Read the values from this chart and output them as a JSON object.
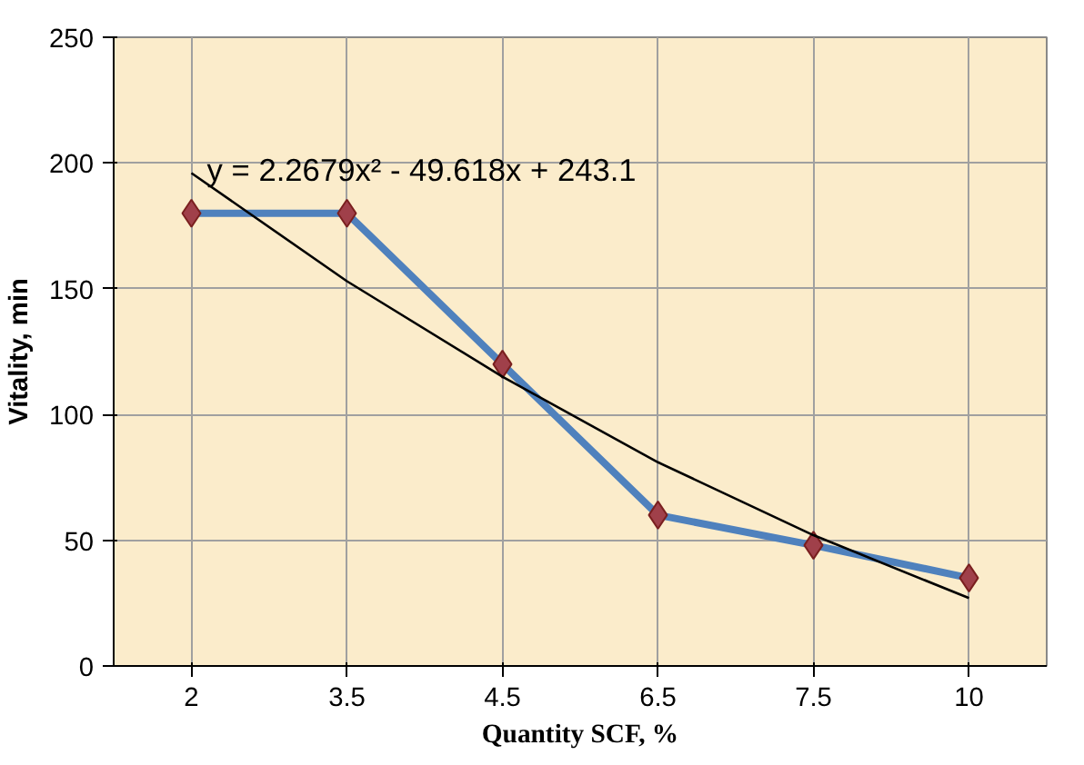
{
  "chart_data": {
    "type": "line",
    "xlabel": "Quantity SCF, %",
    "ylabel": "Vitality, min",
    "categories": [
      "2",
      "3.5",
      "4.5",
      "6.5",
      "7.5",
      "10"
    ],
    "series": [
      {
        "color": "#4f81bd",
        "values": [
          180,
          180,
          120,
          60,
          48,
          35
        ],
        "marker": "diamond",
        "colors": [
          "#a0404a",
          "#a0404a",
          "#a0404a",
          "#a0404a",
          "#a0404a",
          "#a0404a"
        ]
      },
      {
        "color": "#000000",
        "values": [
          196,
          153,
          115,
          81,
          52,
          27
        ],
        "marker": "none"
      }
    ],
    "ylim": [
      0,
      250
    ],
    "yticks": [
      0,
      50,
      100,
      150,
      200,
      250
    ],
    "grid": true,
    "annotations": [
      "y = 2.2679x² - 49.618x + 243.1"
    ]
  }
}
